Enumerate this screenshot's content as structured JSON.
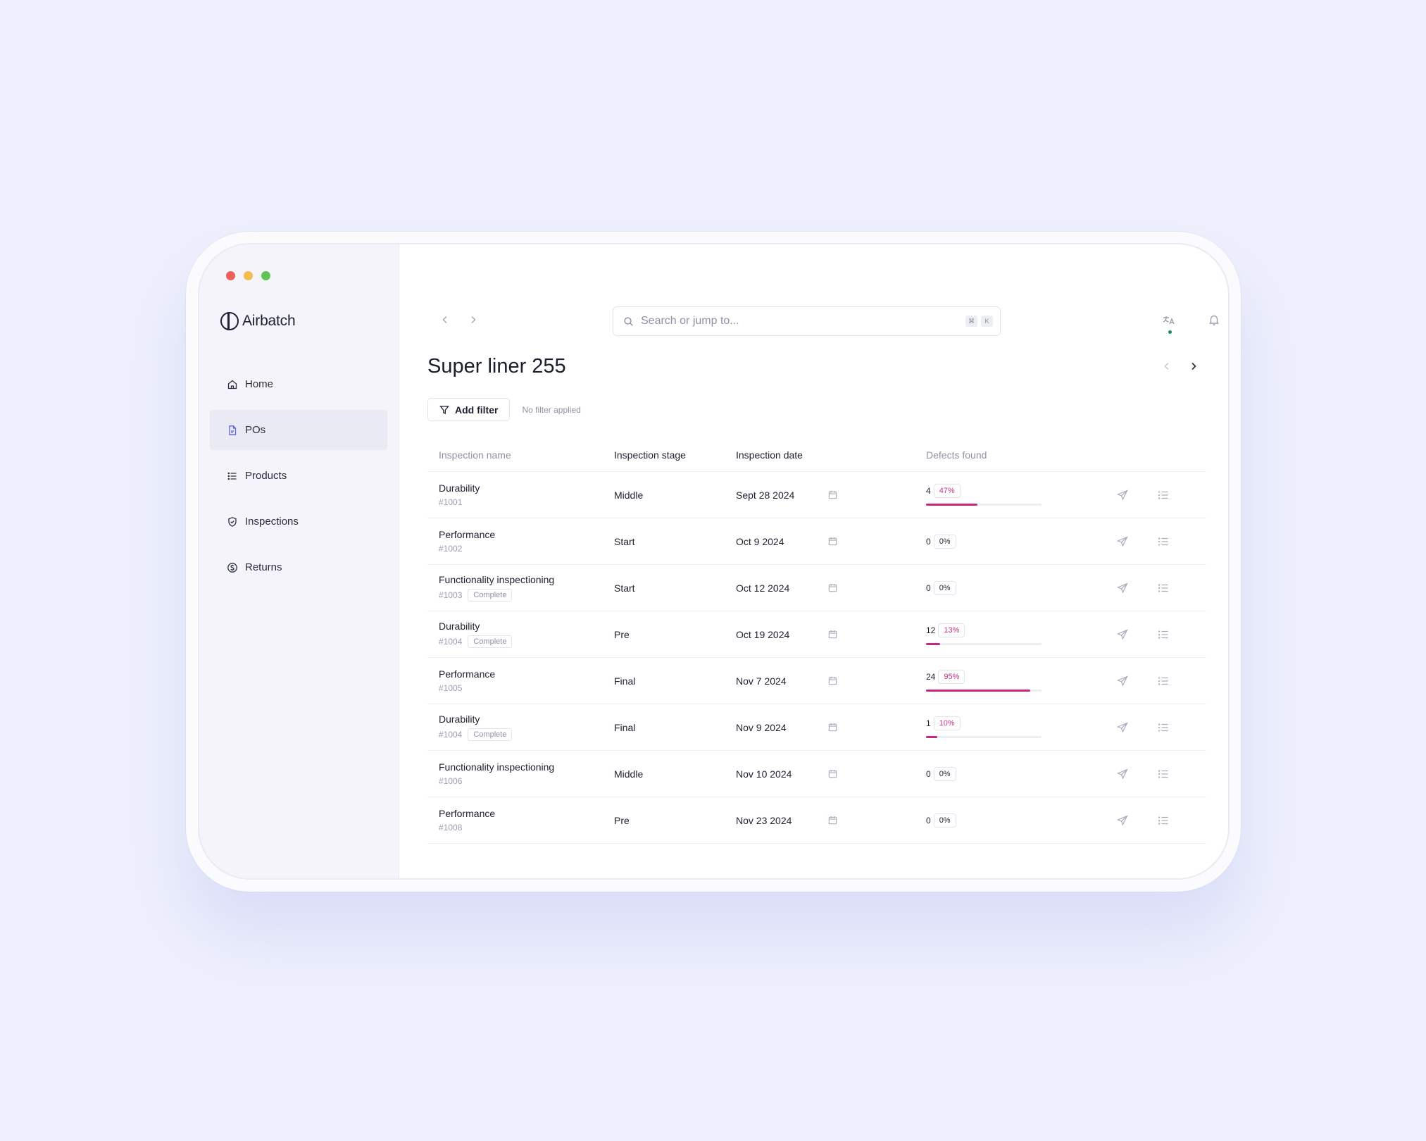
{
  "app": {
    "name": "Airbatch"
  },
  "window_dots": {
    "red": "#ec5f5a",
    "yellow": "#f3be4f",
    "green": "#5ec453"
  },
  "sidebar": {
    "items": [
      {
        "label": "Home",
        "icon": "home-icon",
        "active": false
      },
      {
        "label": "POs",
        "icon": "document-icon",
        "active": true
      },
      {
        "label": "Products",
        "icon": "list-icon",
        "active": false
      },
      {
        "label": "Inspections",
        "icon": "shield-check-icon",
        "active": false
      },
      {
        "label": "Returns",
        "icon": "dollar-circle-icon",
        "active": false
      }
    ]
  },
  "topbar": {
    "search_placeholder": "Search or jump to...",
    "shortcut": [
      "⌘",
      "K"
    ],
    "status_color": "#1f8a70"
  },
  "page": {
    "title": "Super liner 255"
  },
  "filter": {
    "button_label": "Add filter",
    "note": "No filter applied"
  },
  "table": {
    "headers": {
      "name": "Inspection name",
      "stage": "Inspection stage",
      "date": "Inspection date",
      "defects": "Defects found"
    },
    "rows": [
      {
        "name": "Durability",
        "code": "#1001",
        "badge": "",
        "stage": "Middle",
        "date": "Sept 28 2024",
        "defects": "4",
        "percent_label": "47%",
        "percent": 0.47
      },
      {
        "name": "Performance",
        "code": "#1002",
        "badge": "",
        "stage": "Start",
        "date": "Oct 9 2024",
        "defects": "0",
        "percent_label": "0%",
        "percent": 0
      },
      {
        "name": "Functionality inspectioning",
        "code": "#1003",
        "badge": "Complete",
        "stage": "Start",
        "date": "Oct 12 2024",
        "defects": "0",
        "percent_label": "0%",
        "percent": 0
      },
      {
        "name": "Durability",
        "code": "#1004",
        "badge": "Complete",
        "stage": "Pre",
        "date": "Oct 19 2024",
        "defects": "12",
        "percent_label": "13%",
        "percent": 0.13
      },
      {
        "name": "Performance",
        "code": "#1005",
        "badge": "",
        "stage": "Final",
        "date": "Nov 7 2024",
        "defects": "24",
        "percent_label": "95%",
        "percent": 0.95
      },
      {
        "name": "Durability",
        "code": "#1004",
        "badge": "Complete",
        "stage": "Final",
        "date": "Nov 9 2024",
        "defects": "1",
        "percent_label": "10%",
        "percent": 0.1
      },
      {
        "name": "Functionality inspectioning",
        "code": "#1006",
        "badge": "",
        "stage": "Middle",
        "date": "Nov 10 2024",
        "defects": "0",
        "percent_label": "0%",
        "percent": 0
      },
      {
        "name": "Performance",
        "code": "#1008",
        "badge": "",
        "stage": "Pre",
        "date": "Nov 23 2024",
        "defects": "0",
        "percent_label": "0%",
        "percent": 0
      }
    ]
  },
  "colors": {
    "accent": "#c6267e",
    "accent_text": "#c2338a"
  }
}
